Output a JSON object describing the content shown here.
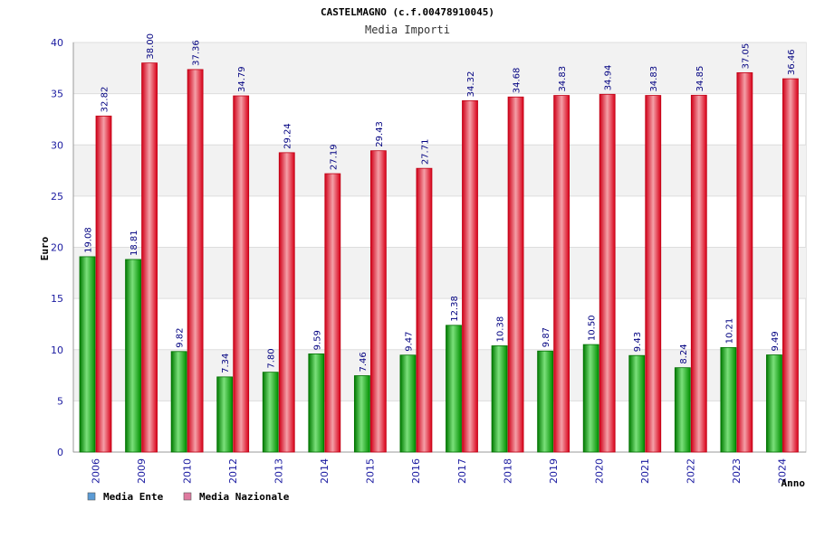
{
  "chart_data": {
    "type": "bar",
    "title": "CASTELMAGNO (c.f.00478910045)",
    "subtitle": "Media Importi",
    "xlabel": "Anno",
    "ylabel": "Euro",
    "ylim": [
      0,
      40
    ],
    "yticks": [
      "0",
      "5",
      "10",
      "15",
      "20",
      "25",
      "30",
      "35",
      "40"
    ],
    "grid": true,
    "legend_position": "bottom-left",
    "categories": [
      "2006",
      "2009",
      "2010",
      "2012",
      "2013",
      "2014",
      "2015",
      "2016",
      "2017",
      "2018",
      "2019",
      "2020",
      "2021",
      "2022",
      "2023",
      "2024"
    ],
    "series": [
      {
        "name": "Media Ente",
        "legend_color": "#5b9bd5",
        "bar_color": "#00a800",
        "values": [
          19.08,
          18.81,
          9.82,
          7.34,
          7.8,
          9.59,
          7.46,
          9.47,
          12.38,
          10.38,
          9.87,
          10.5,
          9.43,
          8.24,
          10.21,
          9.49
        ],
        "labels": [
          "19.08",
          "18.81",
          "9.82",
          "7.34",
          "7.80",
          "9.59",
          "7.46",
          "9.47",
          "12.38",
          "10.38",
          "9.87",
          "10.50",
          "9.43",
          "8.24",
          "10.21",
          "9.49"
        ]
      },
      {
        "name": "Media Nazionale",
        "legend_color": "#e07aa0",
        "bar_color": "#e8001c",
        "values": [
          32.82,
          38.0,
          37.36,
          34.79,
          29.24,
          27.19,
          29.43,
          27.71,
          34.32,
          34.68,
          34.83,
          34.94,
          34.83,
          34.85,
          37.05,
          36.46
        ],
        "labels": [
          "32.82",
          "38.00",
          "37.36",
          "34.79",
          "29.24",
          "27.19",
          "29.43",
          "27.71",
          "34.32",
          "34.68",
          "34.83",
          "34.94",
          "34.83",
          "34.85",
          "37.05",
          "36.46"
        ]
      }
    ]
  }
}
